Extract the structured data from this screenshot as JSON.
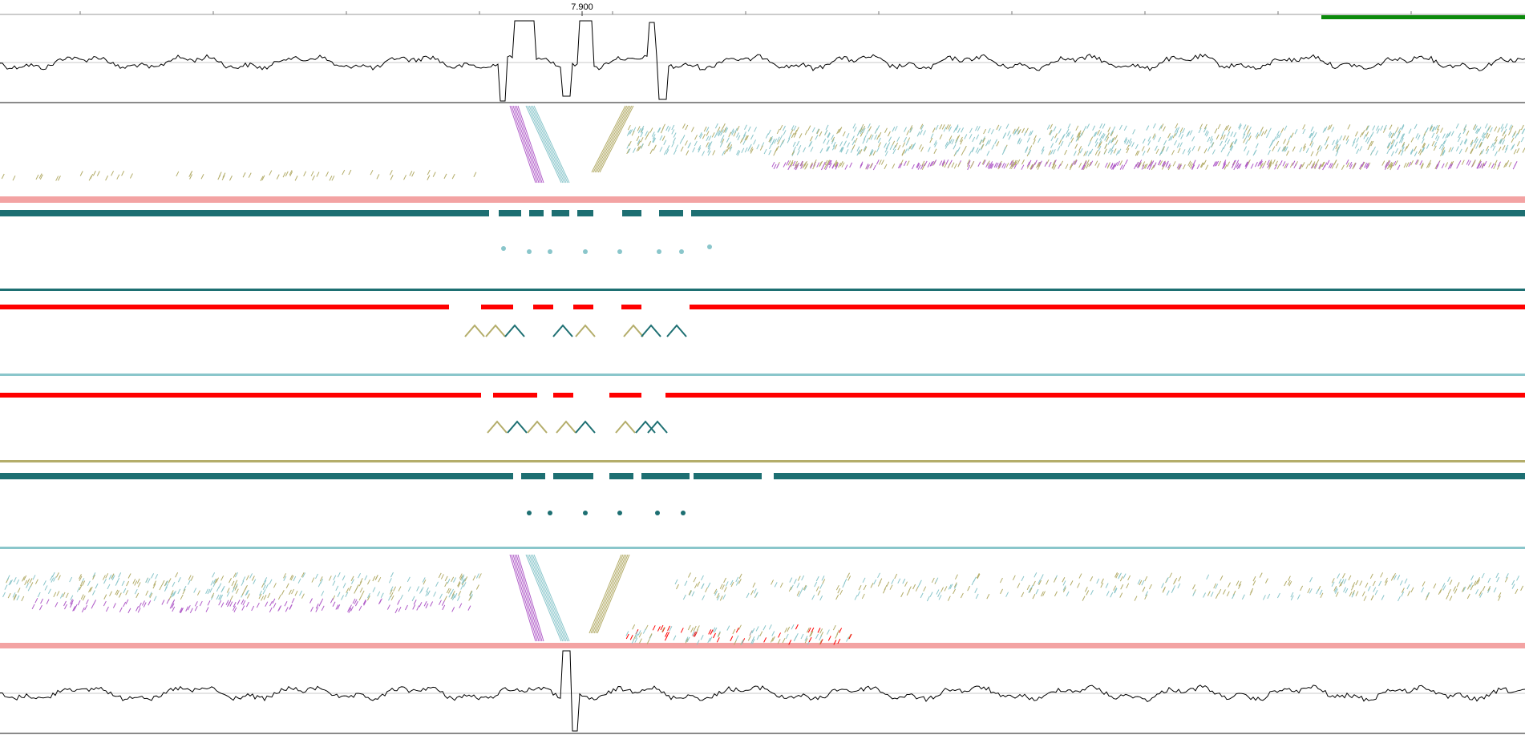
{
  "ruler": {
    "tick_label": "7.900"
  },
  "colors": {
    "background": "#ffffff",
    "plot_line": "#000000",
    "red_band": "#ff0000",
    "pink_band": "#f3a3a3",
    "teal_dark": "#1d6f72",
    "teal_light": "#8ac6cb",
    "purple": "#b05cc8",
    "olive": "#b4ad6a",
    "green_bar": "#0b8a0b",
    "separator": "#8a8a8a"
  },
  "panels": [
    {
      "name": "top-coverage-plot",
      "kind": "line-plot"
    },
    {
      "name": "read-alignment-track-1",
      "kind": "alignment"
    },
    {
      "name": "read-alignment-track-2",
      "kind": "alignment"
    },
    {
      "name": "read-alignment-track-3",
      "kind": "alignment"
    },
    {
      "name": "read-alignment-track-4",
      "kind": "alignment"
    },
    {
      "name": "read-alignment-track-5",
      "kind": "alignment"
    },
    {
      "name": "read-alignment-track-6",
      "kind": "alignment"
    },
    {
      "name": "bottom-coverage-plot",
      "kind": "line-plot"
    }
  ]
}
